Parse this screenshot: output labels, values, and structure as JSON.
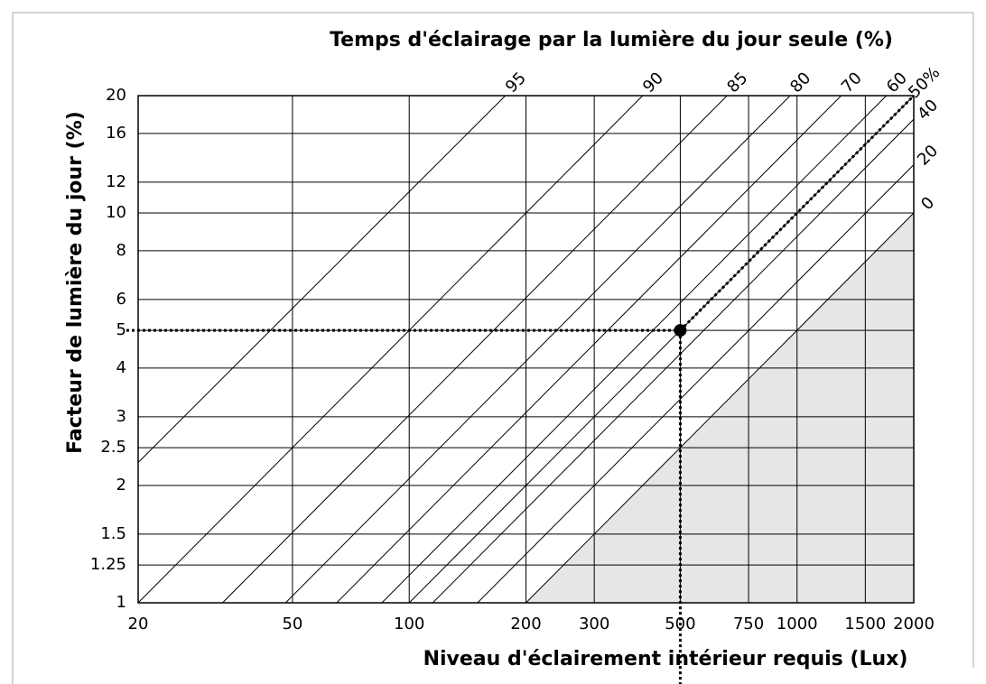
{
  "chart_data": {
    "type": "nomogram",
    "title": "Temps d'éclairage par la lumière du jour seule (%)",
    "x_label": "Niveau d'éclairement intérieur requis (Lux)",
    "y_label": "Facteur de lumière du jour (%)",
    "log_x": true,
    "log_y": true,
    "grid": true,
    "xlim": [
      20,
      2000
    ],
    "xticks": [
      20,
      50,
      100,
      200,
      300,
      500,
      750,
      1000,
      1500,
      2000
    ],
    "ylim": [
      1,
      20
    ],
    "yticks": [
      1,
      1.25,
      1.5,
      2,
      2.5,
      3,
      4,
      5,
      6,
      8,
      10,
      12,
      16,
      20
    ],
    "line_color": "#000000",
    "series": [
      {
        "name": "95",
        "x": [
          20,
          177
        ],
        "y": [
          2.29,
          20
        ]
      },
      {
        "name": "90",
        "x": [
          20,
          400
        ],
        "y": [
          1,
          20
        ]
      },
      {
        "name": "85",
        "x": [
          33,
          660
        ],
        "y": [
          1,
          20
        ]
      },
      {
        "name": "80",
        "x": [
          48,
          960
        ],
        "y": [
          1,
          20
        ]
      },
      {
        "name": "70",
        "x": [
          65,
          1300
        ],
        "y": [
          1,
          20
        ]
      },
      {
        "name": "60",
        "x": [
          85,
          1700
        ],
        "y": [
          1,
          20
        ]
      },
      {
        "name": "50%",
        "x": [
          100,
          2000
        ],
        "y": [
          1,
          20
        ]
      },
      {
        "name": "40",
        "x": [
          115,
          2000
        ],
        "y": [
          1,
          17.4
        ]
      },
      {
        "name": "20",
        "x": [
          150,
          2000
        ],
        "y": [
          1,
          13.3
        ]
      },
      {
        "name": "0",
        "x": [
          200,
          2000
        ],
        "y": [
          1,
          10
        ],
        "fill": "#e6e6e6"
      }
    ],
    "point": {
      "x": 500,
      "y": 5
    }
  }
}
